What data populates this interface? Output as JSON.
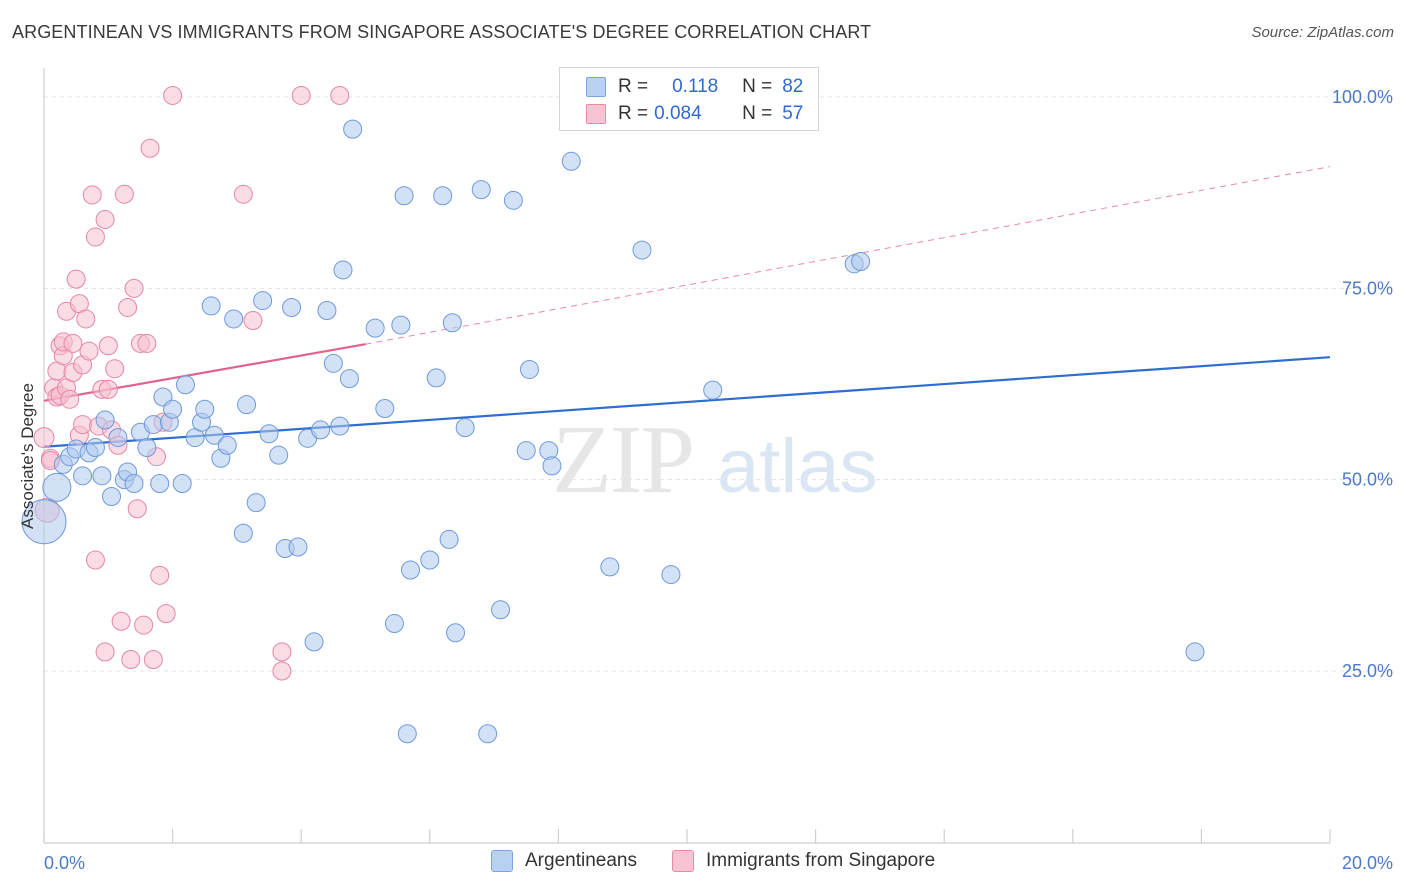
{
  "title": "ARGENTINEAN VS IMMIGRANTS FROM SINGAPORE ASSOCIATE'S DEGREE CORRELATION CHART",
  "source": "Source: ZipAtlas.com",
  "watermark": {
    "zip": "ZIP",
    "atlas": "atlas"
  },
  "legend": {
    "r_label": "R =",
    "n_label": "N =",
    "rows": [
      {
        "r": "0.118",
        "n": "82",
        "fill": "#b8d0f2",
        "stroke": "#7aa5e0"
      },
      {
        "r": "0.084",
        "n": "57",
        "fill": "#f8c3d3",
        "stroke": "#e88aa8"
      }
    ]
  },
  "bottom_legend": [
    "Argentineans",
    "Immigrants from Singapore"
  ],
  "colors": {
    "blue_fill": "#aec9ef",
    "blue_stroke": "#6d9ad9",
    "blue_line": "#2f6ecf",
    "pink_fill": "#f6bfd0",
    "pink_stroke": "#e685a5",
    "pink_line": "#e0638d",
    "grid": "#e3e3e3"
  },
  "chart_data": {
    "type": "scatter",
    "title": "ARGENTINEAN VS IMMIGRANTS FROM SINGAPORE ASSOCIATE'S DEGREE CORRELATION CHART",
    "xlabel": "",
    "ylabel": "Associate's Degree",
    "xlim": [
      0,
      20
    ],
    "ylim": [
      2,
      102
    ],
    "x_tick_labels": [
      "0.0%",
      "20.0%"
    ],
    "y_ticks": [
      25,
      50,
      75,
      100
    ],
    "y_tick_labels": [
      "25.0%",
      "50.0%",
      "75.0%",
      "100.0%"
    ],
    "grid": true,
    "legend_position": "top-center",
    "series": [
      {
        "name": "Argentineans",
        "r": 0.118,
        "n": 82,
        "trend": {
          "x": [
            0,
            20
          ],
          "y": [
            54.3,
            66.0
          ],
          "dashed_extension": false
        },
        "points": [
          [
            0.2,
            49,
            14
          ],
          [
            0.0,
            44.5,
            22
          ],
          [
            0.3,
            52,
            9
          ],
          [
            0.4,
            53,
            9
          ],
          [
            0.5,
            54,
            9
          ],
          [
            0.6,
            50.5,
            9
          ],
          [
            0.7,
            53.5,
            9
          ],
          [
            0.8,
            54.2,
            9
          ],
          [
            0.9,
            50.5,
            9
          ],
          [
            0.95,
            57.8,
            9
          ],
          [
            1.05,
            47.8,
            9
          ],
          [
            1.15,
            55.5,
            9
          ],
          [
            1.25,
            50,
            9
          ],
          [
            1.3,
            51,
            9
          ],
          [
            1.4,
            49.5,
            9
          ],
          [
            1.5,
            56.2,
            9
          ],
          [
            1.6,
            54.2,
            9
          ],
          [
            1.7,
            57.2,
            9
          ],
          [
            1.8,
            49.5,
            9
          ],
          [
            1.85,
            60.8,
            9
          ],
          [
            1.95,
            57.5,
            9
          ],
          [
            2.0,
            59.2,
            9
          ],
          [
            2.15,
            49.5,
            9
          ],
          [
            2.2,
            62.4,
            9
          ],
          [
            2.35,
            55.5,
            9
          ],
          [
            2.45,
            57.5,
            9
          ],
          [
            2.5,
            59.2,
            9
          ],
          [
            2.6,
            72.7,
            9
          ],
          [
            2.65,
            55.8,
            9
          ],
          [
            2.75,
            52.8,
            9
          ],
          [
            2.85,
            54.5,
            9
          ],
          [
            2.95,
            71.0,
            9
          ],
          [
            3.1,
            43.0,
            9
          ],
          [
            3.15,
            59.8,
            9
          ],
          [
            3.3,
            47.0,
            9
          ],
          [
            3.4,
            73.4,
            9
          ],
          [
            3.5,
            56.0,
            9
          ],
          [
            3.65,
            53.2,
            9
          ],
          [
            3.75,
            41.0,
            9
          ],
          [
            3.85,
            72.5,
            9
          ],
          [
            3.95,
            41.2,
            9
          ],
          [
            4.1,
            55.4,
            9
          ],
          [
            4.2,
            28.8,
            9
          ],
          [
            4.3,
            56.5,
            9
          ],
          [
            4.4,
            72.1,
            9
          ],
          [
            4.5,
            65.2,
            9
          ],
          [
            4.6,
            57.0,
            9
          ],
          [
            4.65,
            77.4,
            9
          ],
          [
            4.75,
            63.2,
            9
          ],
          [
            4.8,
            95.8,
            9
          ],
          [
            5.15,
            69.8,
            9
          ],
          [
            5.3,
            59.3,
            9
          ],
          [
            5.45,
            31.2,
            9
          ],
          [
            5.55,
            70.2,
            9
          ],
          [
            5.6,
            87.1,
            9
          ],
          [
            5.65,
            16.8,
            9
          ],
          [
            5.7,
            38.2,
            9
          ],
          [
            6.0,
            39.5,
            9
          ],
          [
            6.1,
            63.3,
            9
          ],
          [
            6.2,
            87.1,
            9
          ],
          [
            6.3,
            42.2,
            9
          ],
          [
            6.35,
            70.5,
            9
          ],
          [
            6.4,
            30.0,
            9
          ],
          [
            6.55,
            56.8,
            9
          ],
          [
            6.8,
            87.9,
            9
          ],
          [
            6.9,
            16.8,
            9
          ],
          [
            7.1,
            33.0,
            9
          ],
          [
            7.3,
            86.5,
            9
          ],
          [
            7.5,
            53.8,
            9
          ],
          [
            7.55,
            64.4,
            9
          ],
          [
            7.85,
            53.8,
            9
          ],
          [
            7.9,
            51.8,
            9
          ],
          [
            8.2,
            91.6,
            9
          ],
          [
            8.5,
            100.2,
            9
          ],
          [
            8.8,
            38.6,
            9
          ],
          [
            9.3,
            80.0,
            9
          ],
          [
            9.75,
            37.6,
            9
          ],
          [
            10.4,
            61.7,
            9
          ],
          [
            12.6,
            78.2,
            9
          ],
          [
            12.7,
            78.5,
            9
          ],
          [
            17.9,
            27.5,
            9
          ]
        ]
      },
      {
        "name": "Immigrants from Singapore",
        "r": 0.084,
        "n": 57,
        "trend": {
          "x": [
            0,
            5.0
          ],
          "y": [
            60.3,
            67.7
          ],
          "dashed_extension": true,
          "extension_end": [
            20,
            90.9
          ]
        },
        "points": [
          [
            0.0,
            55.5,
            10
          ],
          [
            0.05,
            46.0,
            12
          ],
          [
            0.1,
            52.8,
            9
          ],
          [
            0.15,
            62.0,
            9
          ],
          [
            0.2,
            64.2,
            9
          ],
          [
            0.2,
            60.8,
            9
          ],
          [
            0.25,
            61.0,
            9
          ],
          [
            0.25,
            67.5,
            9
          ],
          [
            0.3,
            66.2,
            9
          ],
          [
            0.3,
            68.0,
            9
          ],
          [
            0.35,
            72.0,
            9
          ],
          [
            0.35,
            62.0,
            9
          ],
          [
            0.4,
            60.5,
            9
          ],
          [
            0.45,
            64.0,
            9
          ],
          [
            0.45,
            67.8,
            9
          ],
          [
            0.5,
            76.2,
            9
          ],
          [
            0.55,
            73.0,
            9
          ],
          [
            0.55,
            55.8,
            9
          ],
          [
            0.6,
            65.0,
            9
          ],
          [
            0.6,
            57.2,
            9
          ],
          [
            0.65,
            71.0,
            9
          ],
          [
            0.7,
            66.8,
            9
          ],
          [
            0.75,
            87.2,
            9
          ],
          [
            0.8,
            81.7,
            9
          ],
          [
            0.8,
            39.5,
            9
          ],
          [
            0.85,
            57.0,
            9
          ],
          [
            0.9,
            61.8,
            9
          ],
          [
            0.95,
            84.0,
            9
          ],
          [
            0.95,
            27.5,
            9
          ],
          [
            1.0,
            61.8,
            9
          ],
          [
            1.0,
            67.5,
            9
          ],
          [
            1.05,
            56.5,
            9
          ],
          [
            1.1,
            64.5,
            9
          ],
          [
            1.15,
            54.5,
            9
          ],
          [
            1.2,
            31.5,
            9
          ],
          [
            1.25,
            87.3,
            9
          ],
          [
            1.3,
            72.5,
            9
          ],
          [
            1.35,
            26.5,
            9
          ],
          [
            1.4,
            75.0,
            9
          ],
          [
            1.45,
            46.2,
            9
          ],
          [
            1.5,
            67.8,
            9
          ],
          [
            1.55,
            31.0,
            9
          ],
          [
            1.6,
            67.8,
            9
          ],
          [
            1.65,
            93.3,
            9
          ],
          [
            1.7,
            26.5,
            9
          ],
          [
            1.75,
            53.0,
            9
          ],
          [
            1.8,
            37.5,
            9
          ],
          [
            1.85,
            57.5,
            9
          ],
          [
            1.9,
            32.5,
            9
          ],
          [
            2.0,
            100.2,
            9
          ],
          [
            3.1,
            87.3,
            9
          ],
          [
            3.25,
            70.8,
            9
          ],
          [
            3.7,
            27.5,
            9
          ],
          [
            3.7,
            25.0,
            9
          ],
          [
            4.0,
            100.2,
            9
          ],
          [
            4.6,
            100.2,
            9
          ],
          [
            0.1,
            52.5,
            9
          ]
        ]
      }
    ]
  }
}
